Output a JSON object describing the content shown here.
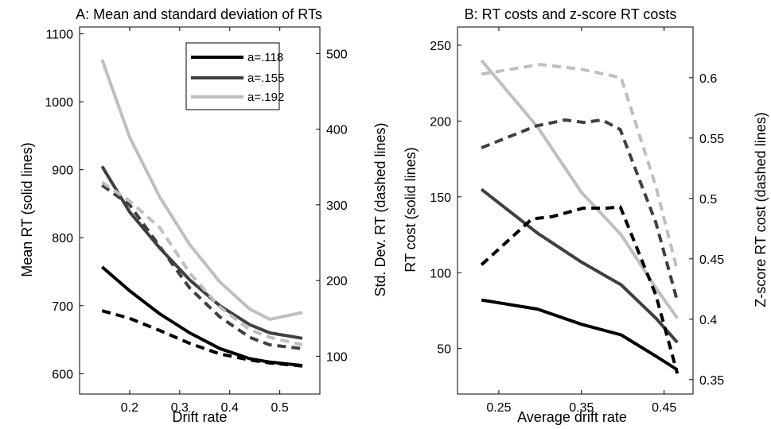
{
  "chart_data": [
    {
      "type": "line",
      "title": "A: Mean and standard deviation of RTs",
      "xlabel": "Drift rate",
      "ylabel_left": "Mean RT (solid lines)",
      "ylabel_right": "Std. Dev. RT (dashed lines)",
      "xlim": [
        0.1,
        0.58
      ],
      "ylim_left": [
        570,
        1110
      ],
      "ylim_right": [
        50,
        535
      ],
      "x_ticks": [
        0.2,
        0.3,
        0.4,
        0.5
      ],
      "x_tick_labels": [
        "0.2",
        "0.3",
        "0.4",
        "0.5"
      ],
      "y_left_ticks": [
        600,
        700,
        800,
        900,
        1000,
        1100
      ],
      "y_left_tick_labels": [
        "600",
        "700",
        "800",
        "900",
        "1000",
        "1100"
      ],
      "y_right_ticks": [
        100,
        200,
        300,
        400,
        500
      ],
      "y_right_tick_labels": [
        "100",
        "200",
        "300",
        "400",
        "500"
      ],
      "grid": false,
      "legend": {
        "placement": "top-right",
        "entries": [
          {
            "label": "a=.118",
            "color": "#000000"
          },
          {
            "label": "a=.155",
            "color": "#404040"
          },
          {
            "label": "a=.192",
            "color": "#bfbfbf"
          }
        ]
      },
      "x": [
        0.145,
        0.2,
        0.26,
        0.32,
        0.38,
        0.44,
        0.48,
        0.545
      ],
      "series": [
        {
          "name": "a=.118",
          "color": "#000000",
          "style": "solid",
          "axis": "left",
          "values": [
            757,
            722,
            688,
            660,
            637,
            622,
            617,
            612
          ]
        },
        {
          "name": "a=.155",
          "color": "#404040",
          "style": "solid",
          "axis": "left",
          "values": [
            905,
            838,
            785,
            738,
            700,
            672,
            660,
            652
          ]
        },
        {
          "name": "a=.192",
          "color": "#bfbfbf",
          "style": "solid",
          "axis": "left",
          "values": [
            1062,
            948,
            860,
            790,
            735,
            695,
            680,
            690
          ]
        },
        {
          "name": "a=.118",
          "color": "#000000",
          "style": "dashed",
          "axis": "right",
          "values": [
            160,
            150,
            134,
            117,
            103,
            95,
            91,
            87
          ]
        },
        {
          "name": "a=.155",
          "color": "#404040",
          "style": "dashed",
          "axis": "right",
          "values": [
            326,
            300,
            245,
            190,
            152,
            125,
            115,
            110
          ]
        },
        {
          "name": "a=.192",
          "color": "#bfbfbf",
          "style": "dashed",
          "axis": "right",
          "values": [
            330,
            305,
            270,
            210,
            165,
            135,
            125,
            115
          ]
        }
      ]
    },
    {
      "type": "line",
      "title": "B: RT costs and z-score RT costs",
      "xlabel": "Average drift rate",
      "ylabel_left": "RT cost (solid lines)",
      "ylabel_right": "Z-score RT cost (dashed lines)",
      "xlim": [
        0.2,
        0.485
      ],
      "ylim_left": [
        20,
        262
      ],
      "ylim_right": [
        0.338,
        0.642
      ],
      "x_ticks": [
        0.25,
        0.35,
        0.45
      ],
      "x_tick_labels": [
        "0.25",
        "0.35",
        "0.45"
      ],
      "y_left_ticks": [
        50,
        100,
        150,
        200,
        250
      ],
      "y_left_tick_labels": [
        "50",
        "100",
        "150",
        "200",
        "250"
      ],
      "y_right_ticks": [
        0.35,
        0.4,
        0.45,
        0.5,
        0.55,
        0.6
      ],
      "y_right_tick_labels": [
        "0.35",
        "0.4",
        "0.45",
        "0.5",
        "0.55",
        "0.6"
      ],
      "grid": false,
      "series": [
        {
          "name": "a=.118",
          "color": "#000000",
          "style": "solid",
          "axis": "left",
          "x": [
            0.229,
            0.297,
            0.35,
            0.398,
            0.44,
            0.466
          ],
          "values": [
            82,
            76,
            66,
            59,
            45,
            36
          ]
        },
        {
          "name": "a=.155",
          "color": "#404040",
          "style": "solid",
          "axis": "left",
          "x": [
            0.229,
            0.297,
            0.35,
            0.398,
            0.44,
            0.466
          ],
          "values": [
            155,
            126,
            107,
            92,
            70,
            54
          ]
        },
        {
          "name": "a=.192",
          "color": "#bfbfbf",
          "style": "solid",
          "axis": "left",
          "x": [
            0.229,
            0.297,
            0.35,
            0.398,
            0.44,
            0.466
          ],
          "values": [
            240,
            196,
            153,
            125,
            90,
            70
          ]
        },
        {
          "name": "a=.118",
          "color": "#000000",
          "style": "dashed",
          "axis": "right",
          "x": [
            0.229,
            0.29,
            0.315,
            0.352,
            0.38,
            0.397,
            0.44,
            0.466
          ],
          "values": [
            0.445,
            0.483,
            0.485,
            0.492,
            0.492,
            0.493,
            0.42,
            0.355
          ]
        },
        {
          "name": "a=.155",
          "color": "#404040",
          "style": "dashed",
          "axis": "right",
          "x": [
            0.229,
            0.295,
            0.33,
            0.353,
            0.375,
            0.397,
            0.44,
            0.466
          ],
          "values": [
            0.542,
            0.56,
            0.565,
            0.563,
            0.565,
            0.557,
            0.48,
            0.415
          ]
        },
        {
          "name": "a=.192",
          "color": "#bfbfbf",
          "style": "dashed",
          "axis": "right",
          "x": [
            0.229,
            0.3,
            0.35,
            0.398,
            0.44,
            0.466
          ],
          "values": [
            0.603,
            0.611,
            0.607,
            0.6,
            0.51,
            0.44
          ]
        }
      ]
    }
  ]
}
